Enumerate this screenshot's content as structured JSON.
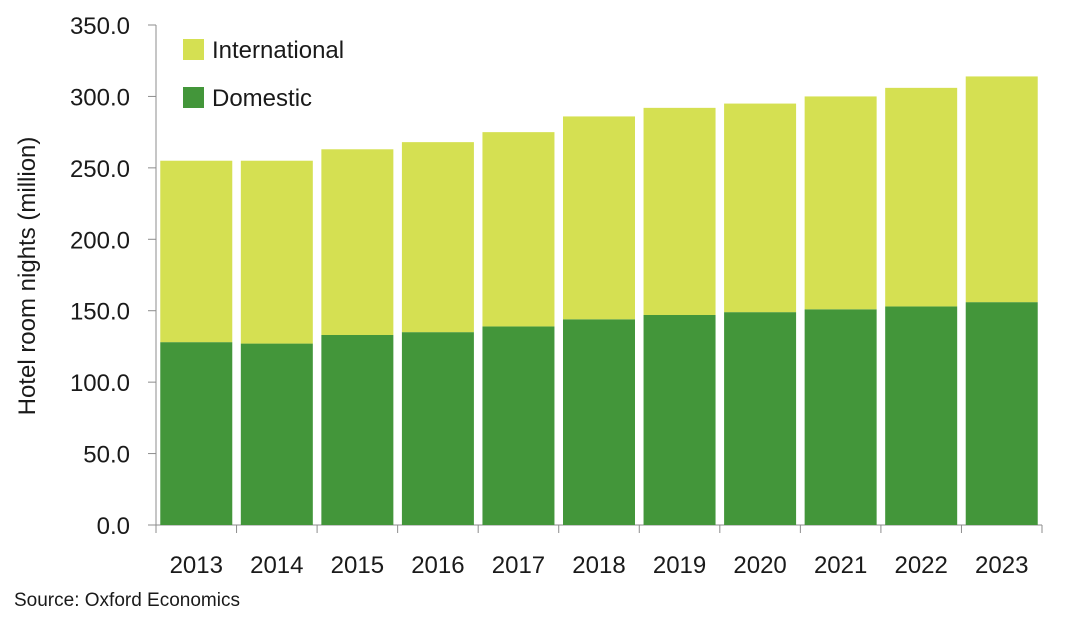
{
  "chart_data": {
    "type": "bar",
    "stacked": true,
    "title": "",
    "xlabel": "",
    "ylabel": "Hotel room nights (million)",
    "ylim": [
      0,
      350
    ],
    "yticks": [
      "0.0",
      "50.0",
      "100.0",
      "150.0",
      "200.0",
      "250.0",
      "300.0",
      "350.0"
    ],
    "categories": [
      "2013",
      "2014",
      "2015",
      "2016",
      "2017",
      "2018",
      "2019",
      "2020",
      "2021",
      "2022",
      "2023"
    ],
    "series": [
      {
        "name": "Domestic",
        "color": "#43963a",
        "values": [
          128,
          127,
          133,
          135,
          139,
          144,
          147,
          149,
          151,
          153,
          156
        ]
      },
      {
        "name": "International",
        "color": "#d5e052",
        "values": [
          127,
          128,
          130,
          133,
          136,
          142,
          145,
          146,
          149,
          153,
          158
        ]
      }
    ],
    "legend": {
      "position": "top-left",
      "entries": [
        {
          "label": "International",
          "color": "#d5e052"
        },
        {
          "label": "Domestic",
          "color": "#43963a"
        }
      ]
    },
    "grid": false
  },
  "source": "Source: Oxford Economics"
}
